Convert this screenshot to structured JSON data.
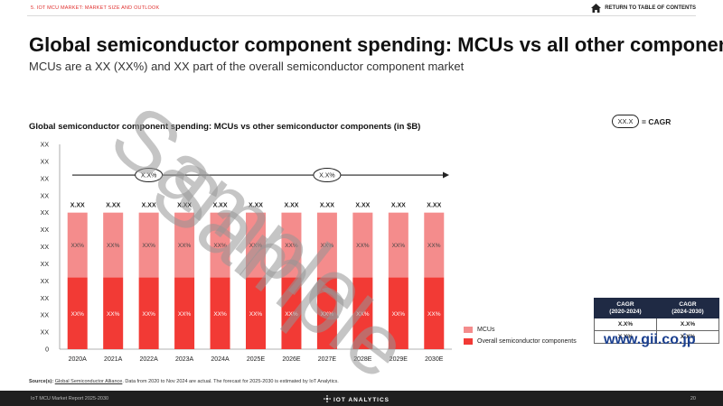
{
  "header": {
    "section_label": "5. IOT MCU MARKET: MARKET SIZE AND OUTLOOK",
    "return_link": "RETURN TO TABLE OF CONTENTS"
  },
  "title": "Global semiconductor component spending: MCUs vs all other components",
  "subtitle": "MCUs are a XX (XX%) and XX part of the overall semiconductor component market",
  "chart_data": {
    "type": "bar",
    "stacked": true,
    "title": "Global semiconductor component spending: MCUs vs other semiconductor components (in $B)",
    "categories": [
      "2020A",
      "2021A",
      "2022A",
      "2023A",
      "2024A",
      "2025E",
      "2026E",
      "2027E",
      "2028E",
      "2029E",
      "2030E"
    ],
    "y_tick_labels": [
      "0",
      "XX",
      "XX",
      "XX",
      "XX",
      "XX",
      "XX",
      "XX",
      "XX",
      "XX",
      "XX",
      "XX",
      "XX"
    ],
    "series": [
      {
        "name": "MCUs",
        "color": "#f48c8c",
        "segment_labels": [
          "XX%",
          "XX%",
          "XX%",
          "XX%",
          "XX%",
          "XX%",
          "XX%",
          "XX%",
          "XX%",
          "XX%",
          "XX%"
        ]
      },
      {
        "name": "Overall semiconductor components",
        "color": "#f23a35",
        "segment_labels": [
          "XX%",
          "XX%",
          "XX%",
          "XX%",
          "XX%",
          "XX%",
          "XX%",
          "XX%",
          "XX%",
          "XX%",
          "XX%"
        ]
      }
    ],
    "total_labels": [
      "X.XX",
      "X.XX",
      "X.XX",
      "X.XX",
      "X.XX",
      "X.XX",
      "X.XX",
      "X.XX",
      "X.XX",
      "X.XX",
      "X.XX"
    ],
    "cagr_annotations": [
      "X.X%",
      "X.X%"
    ],
    "grid": false
  },
  "cagr_key": {
    "oval": "XX.X",
    "label": "= CAGR"
  },
  "cagr_table": {
    "headers": [
      [
        "CAGR",
        "(2020-2024)"
      ],
      [
        "CAGR",
        "(2024-2030)"
      ]
    ],
    "rows": [
      [
        "X.X%",
        "X.X%"
      ],
      [
        "X.X%",
        "X.X%"
      ]
    ]
  },
  "source": {
    "label": "Source(s):",
    "link": "Global Semiconductor Alliance",
    "text": ". Data from 2020 to Nov 2024 are actual. The forecast for 2025-2030 is estimated by IoT Analytics."
  },
  "footer": {
    "left": "IoT MCU Market Report 2025-2030",
    "brand": "IOT ANALYTICS",
    "page": "20"
  },
  "watermark": {
    "text1": "Sample",
    "text2": "Sample"
  },
  "publisher_logo": "www.gii.co.jp",
  "colors": {
    "accent": "#e0312f",
    "mcu": "#f48c8c",
    "overall": "#f23a35",
    "dark": "#1f2a44"
  }
}
